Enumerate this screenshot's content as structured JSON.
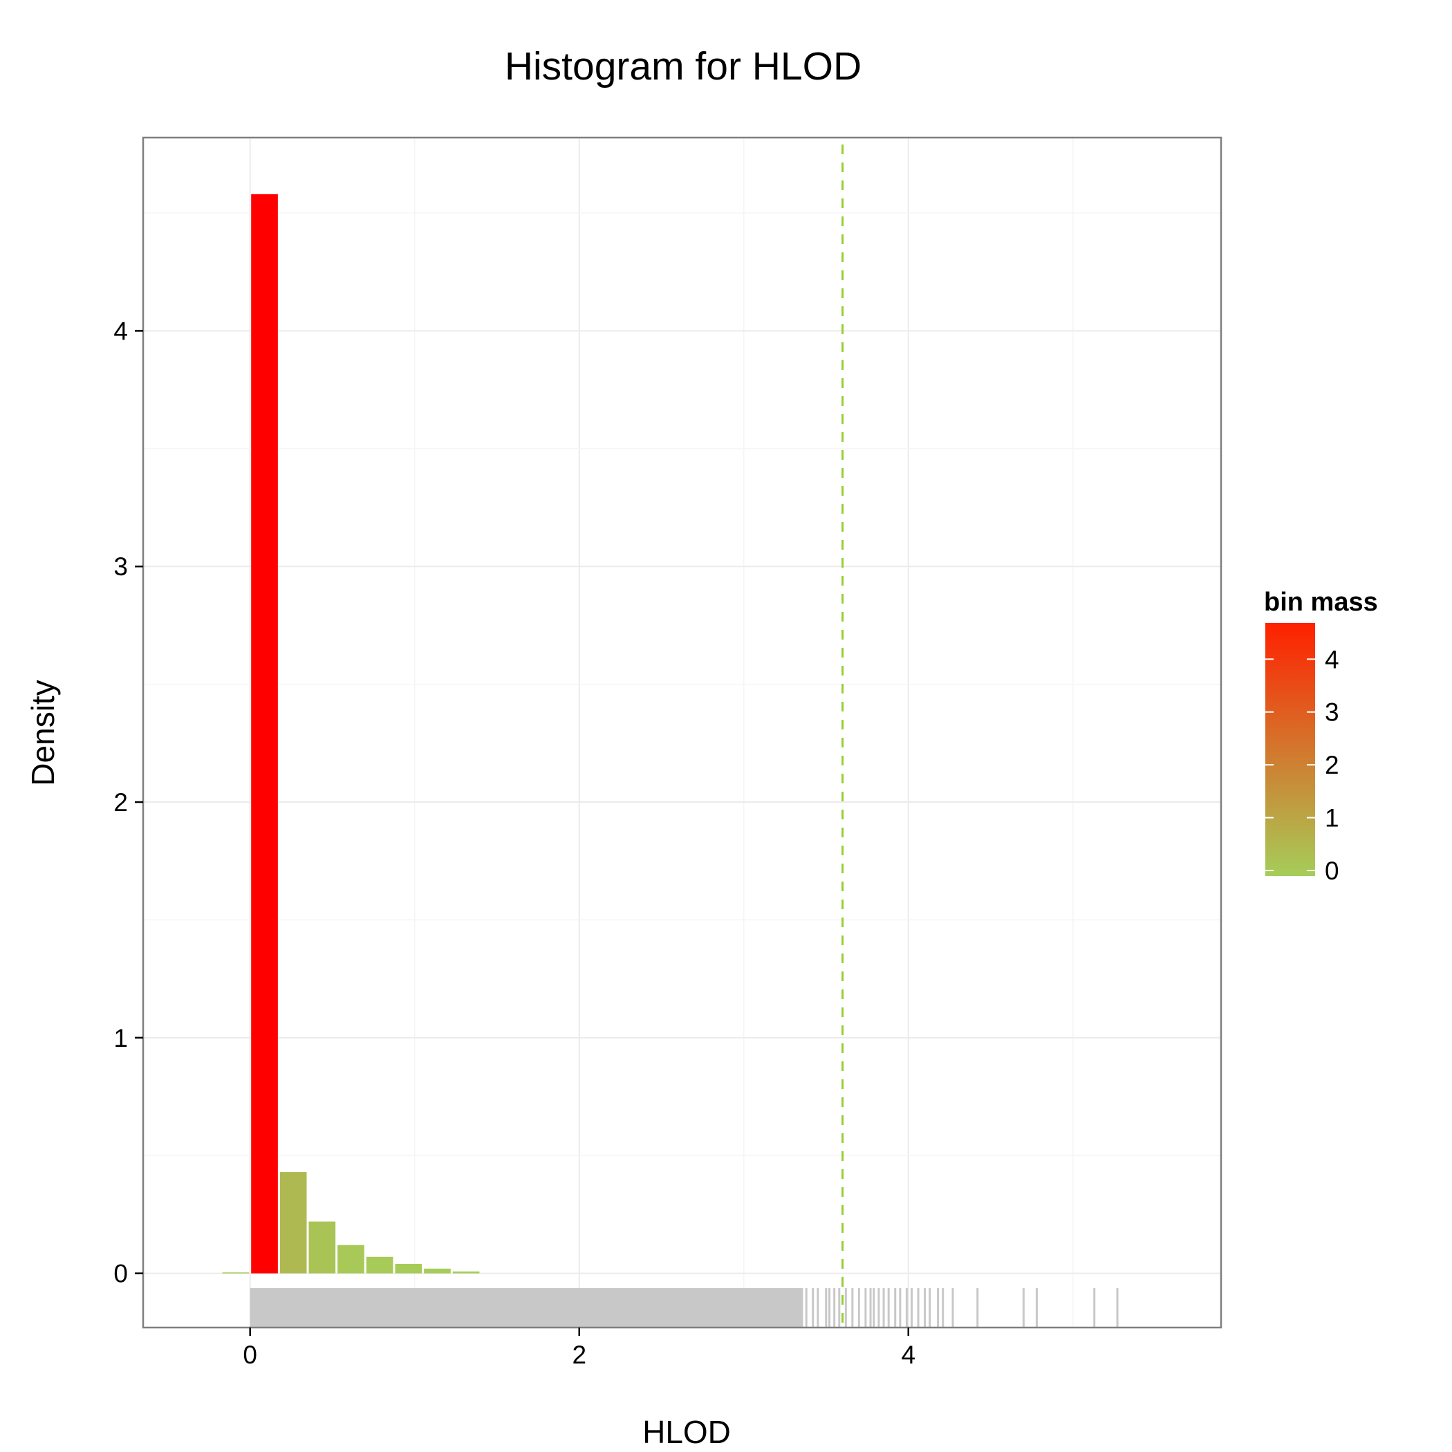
{
  "chart_data": {
    "type": "bar",
    "title": "Histogram for HLOD",
    "xlabel": "HLOD",
    "ylabel": "Density",
    "xlim": [
      -0.65,
      5.9
    ],
    "ylim": [
      -0.23,
      4.82
    ],
    "x_ticks": [
      0,
      2,
      4
    ],
    "y_ticks": [
      0,
      1,
      2,
      3,
      4
    ],
    "grid": true,
    "bin_width": 0.175,
    "bins": [
      {
        "x": -0.175,
        "density": 0.004
      },
      {
        "x": 0.0,
        "density": 4.58
      },
      {
        "x": 0.175,
        "density": 0.43
      },
      {
        "x": 0.35,
        "density": 0.22
      },
      {
        "x": 0.525,
        "density": 0.12
      },
      {
        "x": 0.7,
        "density": 0.07
      },
      {
        "x": 0.875,
        "density": 0.04
      },
      {
        "x": 1.05,
        "density": 0.02
      },
      {
        "x": 1.225,
        "density": 0.008
      }
    ],
    "reference_line": {
      "x": 3.6,
      "style": "dashed",
      "color": "#9acd32"
    },
    "rug": {
      "color": "#c8c8c8",
      "dense_range": [
        0.0,
        3.36
      ],
      "values": [
        3.38,
        3.42,
        3.45,
        3.5,
        3.52,
        3.55,
        3.58,
        3.62,
        3.66,
        3.7,
        3.74,
        3.77,
        3.79,
        3.82,
        3.85,
        3.88,
        3.92,
        3.95,
        3.99,
        4.02,
        4.06,
        4.1,
        4.13,
        4.18,
        4.21,
        4.27,
        4.42,
        4.7,
        4.78,
        5.13,
        5.27
      ]
    },
    "legend": {
      "title": "bin mass",
      "position": "right",
      "range": [
        0,
        4.58
      ],
      "labels": [
        "4",
        "3",
        "2",
        "1",
        "0"
      ],
      "label_values": [
        4,
        3,
        2,
        1,
        0
      ],
      "low_color": "#a6cd59",
      "high_color": "#ff2000"
    },
    "colors": {
      "low": "#a6cd59",
      "high": "#ff0000",
      "panel_border": "#7f7f7f",
      "grid": "#ebebeb"
    }
  }
}
